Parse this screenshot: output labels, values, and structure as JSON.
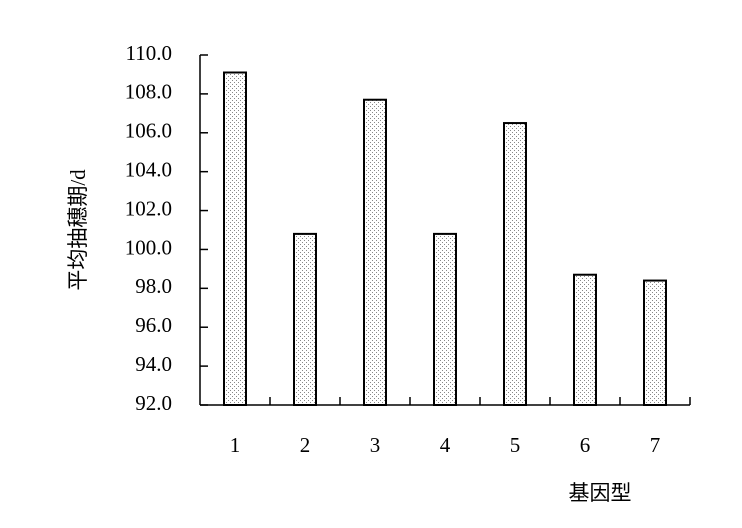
{
  "chart_data": {
    "type": "bar",
    "x_label": "基因型",
    "y_label": "平均抽穗期/d",
    "categories": [
      "1",
      "2",
      "3",
      "4",
      "5",
      "6",
      "7"
    ],
    "values": [
      109.1,
      100.8,
      107.7,
      100.8,
      106.5,
      98.7,
      98.4
    ],
    "ylim": [
      92,
      110
    ],
    "yticks": [
      {
        "value": 92,
        "label": "92.0"
      },
      {
        "value": 94,
        "label": "94.0"
      },
      {
        "value": 96,
        "label": "96.0"
      },
      {
        "value": 98,
        "label": "98.0"
      },
      {
        "value": 100,
        "label": "100.0"
      },
      {
        "value": 102,
        "label": "102.0"
      },
      {
        "value": 104,
        "label": "104.0"
      },
      {
        "value": 106,
        "label": "106.0"
      },
      {
        "value": 108,
        "label": "108.0"
      },
      {
        "value": 110,
        "label": "110.0"
      }
    ],
    "grid": false
  }
}
